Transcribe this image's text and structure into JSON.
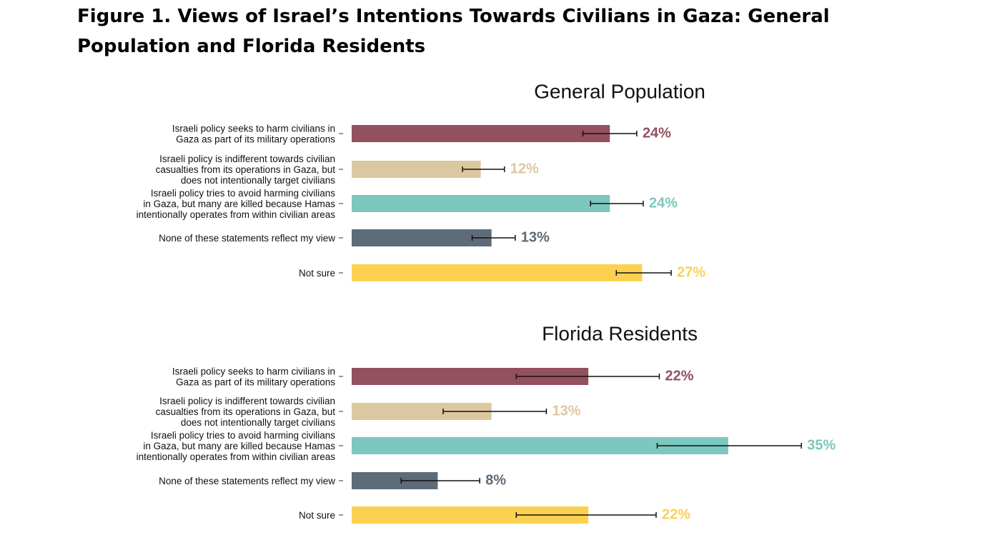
{
  "figure_title": "Figure 1. Views of Israel’s Intentions Towards Civilians in Gaza: General Population and Florida Residents",
  "colors": [
    "#93505f",
    "#dcc8a0",
    "#7cc7be",
    "#5e6b78",
    "#fcd152"
  ],
  "chart_data": [
    {
      "type": "bar",
      "orientation": "horizontal",
      "title": "General Population",
      "categories": [
        [
          "Israeli policy seeks to harm civilians in",
          "Gaza as part of its military operations"
        ],
        [
          "Israeli policy is indifferent towards civilian",
          "casualties from its operations in Gaza, but",
          "does not intentionally target civilians"
        ],
        [
          "Israeli policy tries to avoid harming civilians",
          "in Gaza, but many are killed because Hamas",
          "intentionally operates from within civilian areas"
        ],
        [
          "None of these statements reflect my view"
        ],
        [
          "Not sure"
        ]
      ],
      "values": [
        24,
        12,
        24,
        13,
        27
      ],
      "labels": [
        "24%",
        "12%",
        "24%",
        "13%",
        "27%"
      ],
      "error_low": [
        21.5,
        10.3,
        22.2,
        11.2,
        24.6
      ],
      "error_high": [
        26.5,
        14.2,
        27.1,
        15.2,
        29.7
      ],
      "xlim": [
        0,
        40
      ]
    },
    {
      "type": "bar",
      "orientation": "horizontal",
      "title": "Florida Residents",
      "categories": [
        [
          "Israeli policy seeks to harm civilians in",
          "Gaza as part of its military operations"
        ],
        [
          "Israeli policy is indifferent towards civilian",
          "casualties from its operations in Gaza, but",
          "does not intentionally target civilians"
        ],
        [
          "Israeli policy tries to avoid harming civilians",
          "in Gaza, but many are killed because Hamas",
          "intentionally operates from within civilian areas"
        ],
        [
          "None of these statements reflect my view"
        ],
        [
          "Not sure"
        ]
      ],
      "values": [
        22,
        13,
        35,
        8,
        22
      ],
      "labels": [
        "22%",
        "13%",
        "35%",
        "8%",
        "22%"
      ],
      "error_low": [
        15.3,
        8.5,
        28.4,
        4.6,
        15.3
      ],
      "error_high": [
        28.6,
        18.1,
        41.8,
        11.9,
        28.3
      ],
      "xlim": [
        0,
        40
      ]
    }
  ]
}
